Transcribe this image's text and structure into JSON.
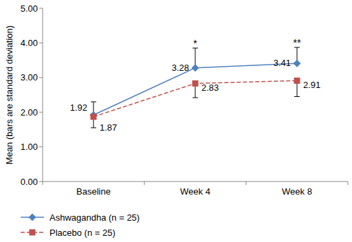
{
  "chart_data": {
    "type": "line",
    "y_label": "Mean (bars are standard deviation)",
    "categories": [
      "Baseline",
      "Week 4",
      "Week 8"
    ],
    "series": [
      {
        "name": "Ashwagandha (n = 25)",
        "color": "#4f81bd",
        "marker": "diamond",
        "line_style": "solid",
        "values": [
          1.92,
          3.28,
          3.41
        ],
        "error": [
          0.38,
          0.57,
          0.46
        ]
      },
      {
        "name": "Placebo (n = 25)",
        "color": "#c0504d",
        "marker": "square",
        "line_style": "dashed",
        "values": [
          1.87,
          2.83,
          2.91
        ],
        "error": [
          0.32,
          0.41,
          0.46
        ]
      }
    ],
    "ylim": [
      0,
      5
    ],
    "yticks": [
      {
        "value": 0,
        "label": "0.00"
      },
      {
        "value": 1,
        "label": "1.00"
      },
      {
        "value": 2,
        "label": "2.00"
      },
      {
        "value": 3,
        "label": "3.00"
      },
      {
        "value": 4,
        "label": "4.00"
      },
      {
        "value": 5,
        "label": "5.00"
      }
    ],
    "annotations": [
      {
        "text": "*",
        "x": "Week 4"
      },
      {
        "text": "**",
        "x": "Week 8"
      }
    ],
    "data_labels": true,
    "grid": false,
    "legend": "bottom"
  }
}
